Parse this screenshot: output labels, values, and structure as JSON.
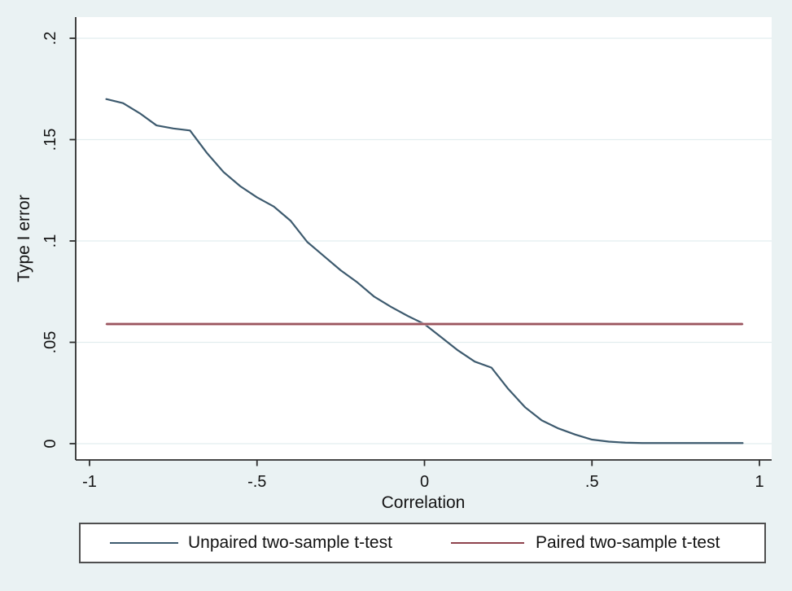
{
  "window": {
    "background_color": "#eaf2f3",
    "plot_background_color": "#ffffff",
    "gridline_color": "#e2edef",
    "axis_color": "#2e2e2e",
    "text_color": "#141414",
    "legend_border_color": "#4f4f4f"
  },
  "chart_data": {
    "type": "line",
    "title": "",
    "xlabel": "Correlation",
    "ylabel": "Type I error",
    "x_tick_labels": [
      "-1",
      "-.5",
      "0",
      ".5",
      "1"
    ],
    "x_tick_values": [
      -1,
      -0.5,
      0,
      0.5,
      1
    ],
    "y_tick_labels": [
      "0",
      ".05",
      ".1",
      ".15",
      ".2"
    ],
    "y_tick_values": [
      0,
      0.05,
      0.1,
      0.15,
      0.2
    ],
    "xlim": [
      -1.06,
      1.04
    ],
    "ylim": [
      -0.008,
      0.21
    ],
    "grid": "horizontal",
    "legend_position": "bottom",
    "x": [
      -0.95,
      -0.9,
      -0.85,
      -0.8,
      -0.75,
      -0.7,
      -0.65,
      -0.6,
      -0.55,
      -0.5,
      -0.45,
      -0.4,
      -0.35,
      -0.3,
      -0.25,
      -0.2,
      -0.15,
      -0.1,
      -0.05,
      0,
      0.05,
      0.1,
      0.15,
      0.2,
      0.25,
      0.3,
      0.35,
      0.4,
      0.45,
      0.5,
      0.55,
      0.6,
      0.65,
      0.7,
      0.75,
      0.8,
      0.85,
      0.9,
      0.95
    ],
    "series": [
      {
        "name": "Unpaired two-sample t-test",
        "color": "#3d5a6e",
        "width": 2.2,
        "values": [
          0.17,
          0.168,
          0.163,
          0.157,
          0.1555,
          0.1545,
          0.1435,
          0.134,
          0.127,
          0.1215,
          0.117,
          0.11,
          0.0995,
          0.0925,
          0.0855,
          0.0795,
          0.0725,
          0.0675,
          0.063,
          0.059,
          0.0525,
          0.046,
          0.0405,
          0.0375,
          0.027,
          0.018,
          0.0115,
          0.0075,
          0.0045,
          0.002,
          0.001,
          0.0005,
          0.0003,
          0.0003,
          0.0003,
          0.0003,
          0.0003,
          0.0003,
          0.0003
        ]
      },
      {
        "name": "Paired two-sample t-test",
        "color": "#8e434d",
        "halo": "#cfa6ad",
        "width": 1.6,
        "values": [
          0.059,
          0.059,
          0.059,
          0.059,
          0.059,
          0.059,
          0.059,
          0.059,
          0.059,
          0.059,
          0.059,
          0.059,
          0.059,
          0.059,
          0.059,
          0.059,
          0.059,
          0.059,
          0.059,
          0.059,
          0.059,
          0.059,
          0.059,
          0.059,
          0.059,
          0.059,
          0.059,
          0.059,
          0.059,
          0.059,
          0.059,
          0.059,
          0.059,
          0.059,
          0.059,
          0.059,
          0.059,
          0.059,
          0.059
        ]
      }
    ]
  }
}
